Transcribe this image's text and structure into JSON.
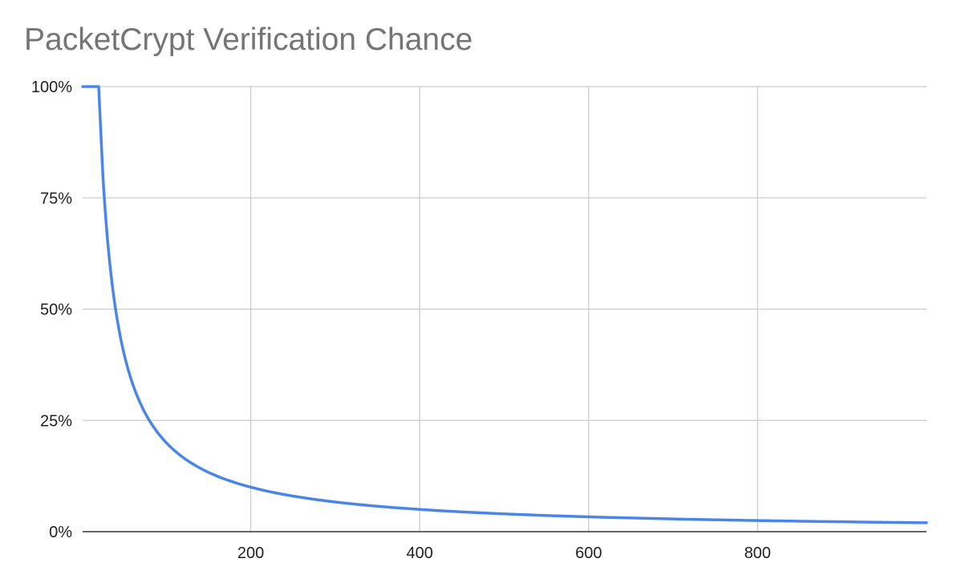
{
  "chart_data": {
    "type": "line",
    "title": "PacketCrypt Verification Chance",
    "xlabel": "",
    "ylabel": "",
    "xlim": [
      1,
      1000
    ],
    "ylim": [
      0,
      1
    ],
    "x_ticks": [
      200,
      400,
      600,
      800
    ],
    "x_tick_labels": [
      "200",
      "400",
      "600",
      "800"
    ],
    "y_ticks": [
      0,
      0.25,
      0.5,
      0.75,
      1
    ],
    "y_tick_labels": [
      "0%",
      "25%",
      "50%",
      "75%",
      "100%"
    ],
    "grid": true,
    "legend": "none",
    "series": [
      {
        "x": [
          1,
          20,
          25,
          30,
          40,
          50,
          60,
          80,
          100,
          150,
          200,
          300,
          400,
          500,
          600,
          700,
          800,
          900,
          1000
        ],
        "values": [
          1,
          1,
          0.8,
          0.6667,
          0.5,
          0.4,
          0.3333,
          0.25,
          0.2,
          0.1333,
          0.1,
          0.0667,
          0.05,
          0.04,
          0.0333,
          0.0286,
          0.025,
          0.0222,
          0.02
        ],
        "color": "#4a86e8"
      }
    ]
  },
  "colors": {
    "line": "#4a86e8",
    "grid": "#cccccc",
    "axis": "#333333",
    "title": "#757575"
  }
}
